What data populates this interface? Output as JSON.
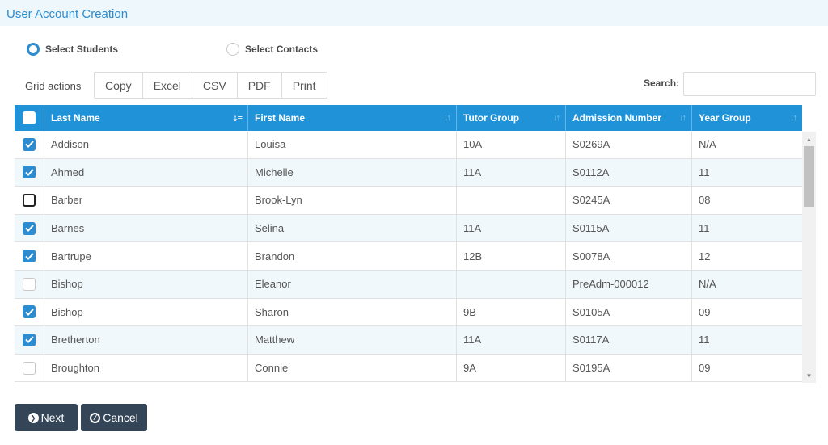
{
  "page": {
    "title": "User Account Creation"
  },
  "mode": {
    "students_label": "Select Students",
    "contacts_label": "Select Contacts",
    "selected": "students"
  },
  "toolbar": {
    "grid_actions_label": "Grid actions",
    "buttons": [
      "Copy",
      "Excel",
      "CSV",
      "PDF",
      "Print"
    ],
    "search_label": "Search:",
    "search_value": ""
  },
  "grid": {
    "columns": [
      "Last Name",
      "First Name",
      "Tutor Group",
      "Admission Number",
      "Year Group"
    ],
    "sorted_column": "Last Name",
    "rows": [
      {
        "checked": true,
        "last": "Addison",
        "first": "Louisa",
        "tutor": "10A",
        "admission": "S0269A",
        "year": "N/A"
      },
      {
        "checked": true,
        "last": "Ahmed",
        "first": "Michelle",
        "tutor": "11A",
        "admission": "S0112A",
        "year": "11"
      },
      {
        "checked": false,
        "last": "Barber",
        "first": "Brook-Lyn",
        "tutor": "",
        "admission": "S0245A",
        "year": "08",
        "focused": true
      },
      {
        "checked": true,
        "last": "Barnes",
        "first": "Selina",
        "tutor": "11A",
        "admission": "S0115A",
        "year": "11"
      },
      {
        "checked": true,
        "last": "Bartrupe",
        "first": "Brandon",
        "tutor": "12B",
        "admission": "S0078A",
        "year": "12"
      },
      {
        "checked": false,
        "last": "Bishop",
        "first": "Eleanor",
        "tutor": "",
        "admission": "PreAdm-000012",
        "year": "N/A"
      },
      {
        "checked": true,
        "last": "Bishop",
        "first": "Sharon",
        "tutor": "9B",
        "admission": "S0105A",
        "year": "09"
      },
      {
        "checked": true,
        "last": "Bretherton",
        "first": "Matthew",
        "tutor": "11A",
        "admission": "S0117A",
        "year": "11"
      },
      {
        "checked": false,
        "last": "Broughton",
        "first": "Connie",
        "tutor": "9A",
        "admission": "S0195A",
        "year": "09"
      }
    ]
  },
  "actions": {
    "next_label": "Next",
    "cancel_label": "Cancel"
  },
  "colors": {
    "accent": "#2d8ccf",
    "header_bg": "#1f92d8",
    "button_bg": "#344557",
    "alt_row": "#f1f8fc"
  },
  "icons": {
    "next": "chevron-right-circle-icon",
    "cancel": "ban-icon",
    "sort": "sort-icon",
    "check": "check-icon"
  }
}
